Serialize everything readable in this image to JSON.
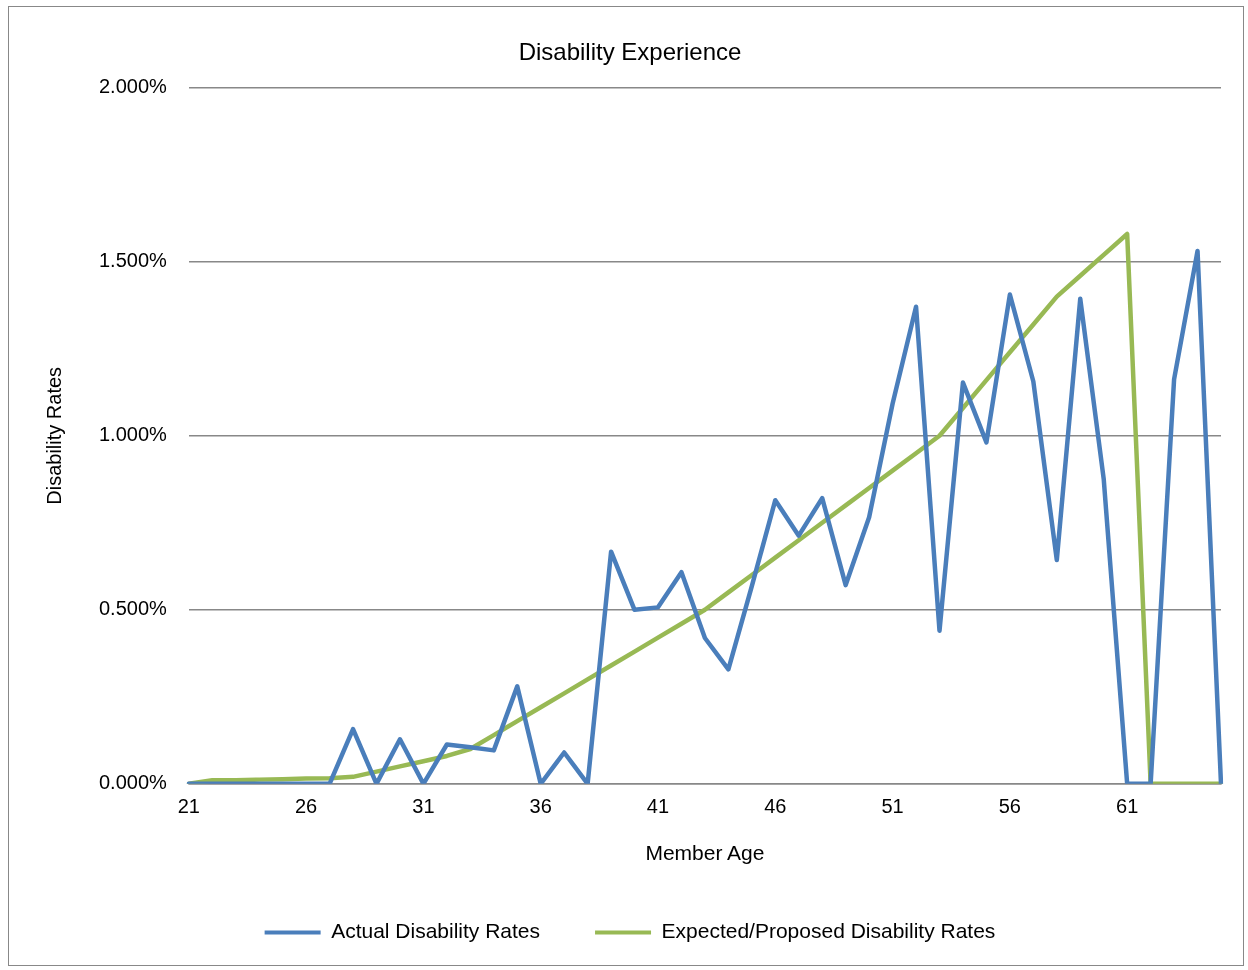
{
  "chart_data": {
    "type": "line",
    "title": "Disability Experience",
    "xlabel": "Member Age",
    "ylabel": "Disability Rates",
    "categories": [
      "21",
      null,
      null,
      null,
      null,
      "26",
      null,
      null,
      null,
      null,
      "31",
      null,
      null,
      null,
      null,
      "36",
      null,
      null,
      null,
      null,
      "41",
      null,
      null,
      null,
      null,
      "46",
      null,
      null,
      null,
      null,
      "51",
      null,
      null,
      null,
      null,
      "56",
      null,
      null,
      null,
      null,
      "61",
      null,
      null,
      null,
      null
    ],
    "series": [
      {
        "name": "Actual Disability Rates",
        "color": "#4a7ebb",
        "values": [
          0,
          0,
          0,
          0,
          0,
          0,
          0,
          0.157,
          0,
          0.128,
          0,
          0.113,
          0.105,
          0.096,
          0.28,
          0,
          0.09,
          0,
          0.667,
          0.5,
          0.507,
          0.608,
          0.419,
          0.329,
          0.568,
          0.815,
          0.713,
          0.821,
          0.571,
          0.766,
          1.092,
          1.371,
          0.44,
          1.153,
          0.981,
          1.406,
          1.156,
          0.643,
          1.394,
          0.876,
          0,
          0,
          1.162,
          1.531,
          0
        ]
      },
      {
        "name": "Expected/Proposed Disability Rates",
        "color": "#98b954",
        "values": [
          0,
          0.01,
          0.01,
          0.012,
          0.013,
          0.015,
          0.016,
          0.02,
          0.035,
          0.05,
          0.065,
          0.08,
          0.1,
          0.14,
          0.18,
          0.22,
          0.26,
          0.3,
          0.34,
          0.38,
          0.42,
          0.46,
          0.5,
          0.55,
          0.6,
          0.65,
          0.7,
          0.75,
          0.8,
          0.85,
          0.9,
          0.95,
          1.0,
          1.08,
          1.16,
          1.24,
          1.32,
          1.4,
          1.46,
          1.52,
          1.58,
          0,
          0,
          0,
          0
        ]
      }
    ],
    "ylim": [
      0,
      2
    ],
    "yticks": [
      {
        "value": 0,
        "label": "0.000%"
      },
      {
        "value": 0.5,
        "label": "0.500%"
      },
      {
        "value": 1,
        "label": "1.000%"
      },
      {
        "value": 1.5,
        "label": "1.500%"
      },
      {
        "value": 2,
        "label": "2.000%"
      }
    ],
    "grid": "y",
    "legend": "bottom",
    "marker": "none",
    "line_style": "solid"
  }
}
